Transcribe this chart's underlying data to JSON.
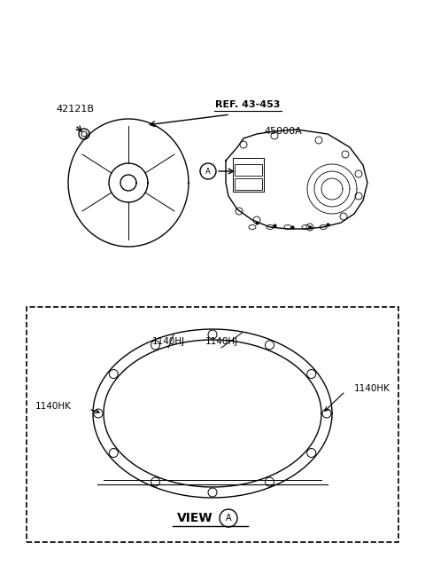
{
  "bg_color": "#ffffff",
  "line_color": "#000000",
  "gray_line": "#555555",
  "label_42121B": "42121B",
  "label_ref": "REF. 43-453",
  "label_45000A": "45000A",
  "label_1140HJ_1": "1140HJ",
  "label_1140HJ_2": "1140HJ",
  "label_1140HK_left": "1140HK",
  "label_1140HK_right": "1140HK",
  "label_view": "VIEW",
  "label_A": "A",
  "circle_A_symbol": "A"
}
